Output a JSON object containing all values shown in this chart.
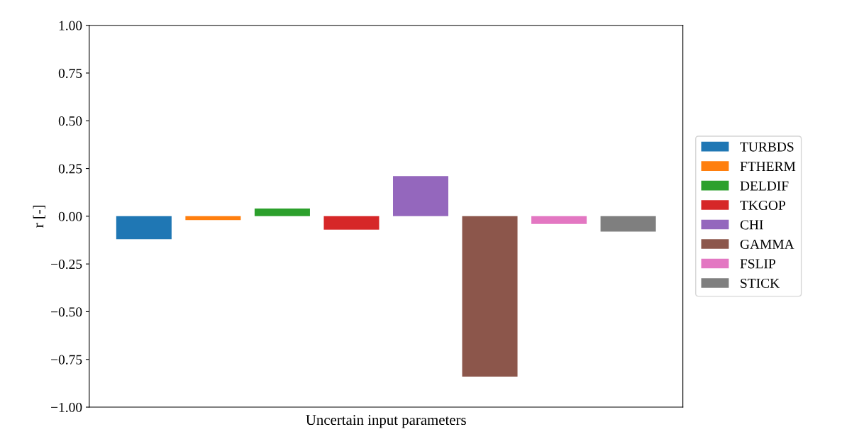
{
  "chart_data": {
    "type": "bar",
    "xlabel": "Uncertain input parameters",
    "ylabel": "r [-]",
    "categories": [
      null
    ],
    "series": [
      {
        "name": "TURBDS",
        "color": "#1f77b4",
        "values": [
          -0.12
        ]
      },
      {
        "name": "FTHERM",
        "color": "#ff7f0e",
        "values": [
          -0.02
        ]
      },
      {
        "name": "DELDIF",
        "color": "#2ca02c",
        "values": [
          0.04
        ]
      },
      {
        "name": "TKGOP",
        "color": "#d62728",
        "values": [
          -0.07
        ]
      },
      {
        "name": "CHI",
        "color": "#9467bd",
        "values": [
          0.21
        ]
      },
      {
        "name": "GAMMA",
        "color": "#8c564b",
        "values": [
          -0.84
        ]
      },
      {
        "name": "FSLIP",
        "color": "#e377c2",
        "values": [
          -0.04
        ]
      },
      {
        "name": "STICK",
        "color": "#7f7f7f",
        "values": [
          -0.08
        ]
      }
    ],
    "ylim": [
      -1.0,
      1.0
    ],
    "yticks": [
      {
        "value": -1.0,
        "label": "−1.00"
      },
      {
        "value": -0.75,
        "label": "−0.75"
      },
      {
        "value": -0.5,
        "label": "−0.50"
      },
      {
        "value": -0.25,
        "label": "−0.25"
      },
      {
        "value": 0.0,
        "label": "0.00"
      },
      {
        "value": 0.25,
        "label": "0.25"
      },
      {
        "value": 0.5,
        "label": "0.50"
      },
      {
        "value": 0.75,
        "label": "0.75"
      },
      {
        "value": 1.0,
        "label": "1.00"
      }
    ],
    "legend": "right",
    "grid": false
  }
}
